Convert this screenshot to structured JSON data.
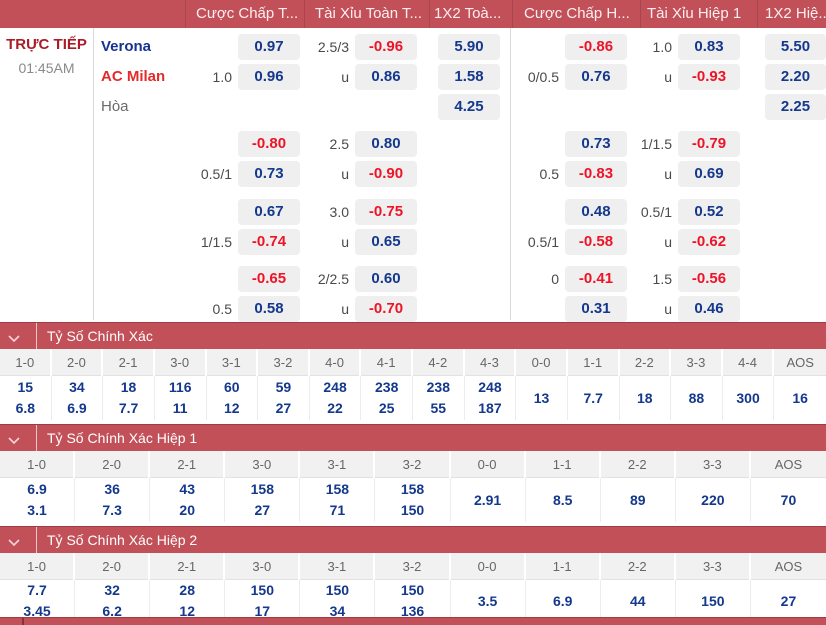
{
  "colors": {
    "accent_red": "#c25059",
    "odds_blue": "#14388c",
    "negative_red": "#ed1427",
    "box_gray": "#efefef",
    "live_red": "#a81d27",
    "home_blue": "#16338f",
    "away_red": "#e42b2b"
  },
  "header": {
    "columns": [
      "Cược Chấp T...",
      "Tài Xỉu Toàn T...",
      "1X2 Toà...",
      "Cược Chấp H...",
      "Tài Xỉu Hiệp 1",
      "1X2 Hiệ..."
    ]
  },
  "match": {
    "live_label": "TRỰC TIẾP",
    "time": "01:45AM",
    "home": "Verona",
    "away": "AC Milan",
    "draw_label": "Hòa"
  },
  "odds": {
    "groups": [
      {
        "rows": [
          {
            "team": "Verona",
            "team_class": "home",
            "cells": [
              [
                "",
                "0.97"
              ],
              [
                "2.5/3",
                "-0.96"
              ],
              [
                "",
                "5.90"
              ],
              [
                "",
                "-0.86"
              ],
              [
                "1.0",
                "0.83"
              ],
              [
                "",
                "5.50"
              ]
            ]
          },
          {
            "team": "AC Milan",
            "team_class": "away",
            "cells": [
              [
                "1.0",
                "0.96"
              ],
              [
                "u",
                "0.86"
              ],
              [
                "",
                "1.58"
              ],
              [
                "0/0.5",
                "0.76"
              ],
              [
                "u",
                "-0.93"
              ],
              [
                "",
                "2.20"
              ]
            ]
          },
          {
            "team": "Hòa",
            "team_class": "draw",
            "cells": [
              [
                "",
                ""
              ],
              [
                "",
                ""
              ],
              [
                "",
                "4.25"
              ],
              [
                "",
                ""
              ],
              [
                "",
                ""
              ],
              [
                "",
                "2.25"
              ]
            ]
          }
        ]
      },
      {
        "rows": [
          {
            "team": "",
            "team_class": "",
            "cells": [
              [
                "",
                "-0.80"
              ],
              [
                "2.5",
                "0.80"
              ],
              [
                "",
                ""
              ],
              [
                "",
                "0.73"
              ],
              [
                "1/1.5",
                "-0.79"
              ],
              [
                "",
                ""
              ]
            ]
          },
          {
            "team": "",
            "team_class": "",
            "cells": [
              [
                "0.5/1",
                "0.73"
              ],
              [
                "u",
                "-0.90"
              ],
              [
                "",
                ""
              ],
              [
                "0.5",
                "-0.83"
              ],
              [
                "u",
                "0.69"
              ],
              [
                "",
                ""
              ]
            ]
          }
        ]
      },
      {
        "rows": [
          {
            "team": "",
            "team_class": "",
            "cells": [
              [
                "",
                "0.67"
              ],
              [
                "3.0",
                "-0.75"
              ],
              [
                "",
                ""
              ],
              [
                "",
                "0.48"
              ],
              [
                "0.5/1",
                "0.52"
              ],
              [
                "",
                ""
              ]
            ]
          },
          {
            "team": "",
            "team_class": "",
            "cells": [
              [
                "1/1.5",
                "-0.74"
              ],
              [
                "u",
                "0.65"
              ],
              [
                "",
                ""
              ],
              [
                "0.5/1",
                "-0.58"
              ],
              [
                "u",
                "-0.62"
              ],
              [
                "",
                ""
              ]
            ]
          }
        ]
      },
      {
        "rows": [
          {
            "team": "",
            "team_class": "",
            "cells": [
              [
                "",
                "-0.65"
              ],
              [
                "2/2.5",
                "0.60"
              ],
              [
                "",
                ""
              ],
              [
                "0",
                "-0.41"
              ],
              [
                "1.5",
                "-0.56"
              ],
              [
                "",
                ""
              ]
            ]
          },
          {
            "team": "",
            "team_class": "",
            "cells": [
              [
                "0.5",
                "0.58"
              ],
              [
                "u",
                "-0.70"
              ],
              [
                "",
                ""
              ],
              [
                "",
                "0.31"
              ],
              [
                "u",
                "0.46"
              ],
              [
                "",
                ""
              ]
            ]
          }
        ]
      }
    ]
  },
  "score_sections": [
    {
      "title": "Tỷ Số Chính Xác",
      "columns": [
        "1-0",
        "2-0",
        "2-1",
        "3-0",
        "3-1",
        "3-2",
        "4-0",
        "4-1",
        "4-2",
        "4-3",
        "0-0",
        "1-1",
        "2-2",
        "3-3",
        "4-4",
        "AOS"
      ],
      "top": [
        "15",
        "34",
        "18",
        "116",
        "60",
        "59",
        "248",
        "238",
        "238",
        "248"
      ],
      "bottom": [
        "6.8",
        "6.9",
        "7.7",
        "11",
        "12",
        "27",
        "22",
        "25",
        "55",
        "187"
      ],
      "single": [
        "13",
        "7.7",
        "18",
        "88",
        "300",
        "16"
      ]
    },
    {
      "title": "Tỷ Số Chính Xác Hiệp 1",
      "columns": [
        "1-0",
        "2-0",
        "2-1",
        "3-0",
        "3-1",
        "3-2",
        "0-0",
        "1-1",
        "2-2",
        "3-3",
        "AOS"
      ],
      "top": [
        "6.9",
        "36",
        "43",
        "158",
        "158",
        "158"
      ],
      "bottom": [
        "3.1",
        "7.3",
        "20",
        "27",
        "71",
        "150"
      ],
      "single": [
        "2.91",
        "8.5",
        "89",
        "220",
        "70"
      ]
    },
    {
      "title": "Tỷ Số Chính Xác Hiệp 2",
      "columns": [
        "1-0",
        "2-0",
        "2-1",
        "3-0",
        "3-1",
        "3-2",
        "0-0",
        "1-1",
        "2-2",
        "3-3",
        "AOS"
      ],
      "top": [
        "7.7",
        "32",
        "28",
        "150",
        "150",
        "150"
      ],
      "bottom": [
        "3.45",
        "6.2",
        "12",
        "17",
        "34",
        "136"
      ],
      "single": [
        "3.5",
        "6.9",
        "44",
        "150",
        "27"
      ]
    }
  ]
}
